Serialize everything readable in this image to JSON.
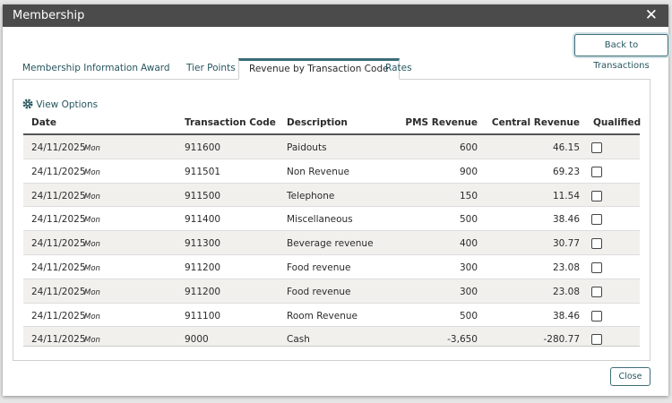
{
  "dialog": {
    "title": "Membership",
    "close_icon": "✕",
    "back_button": "Back to Transactions",
    "tabs": [
      "Membership Information",
      "Award",
      "Tier Points",
      "Revenue by Transaction Code",
      "Rates"
    ],
    "active_tab": 3,
    "view_options": "View Options",
    "table": {
      "columns": [
        "Date",
        "Transaction Code",
        "Description",
        "PMS Revenue",
        "Central Revenue",
        "Qualified"
      ],
      "rows": [
        [
          "24/11/2025",
          "Mon",
          "911600",
          "Paidouts",
          "600",
          "46.15"
        ],
        [
          "24/11/2025",
          "Mon",
          "911501",
          "Non Revenue",
          "900",
          "69.23"
        ],
        [
          "24/11/2025",
          "Mon",
          "911500",
          "Telephone",
          "150",
          "11.54"
        ],
        [
          "24/11/2025",
          "Mon",
          "911400",
          "Miscellaneous",
          "500",
          "38.46"
        ],
        [
          "24/11/2025",
          "Mon",
          "911300",
          "Beverage revenue",
          "400",
          "30.77"
        ],
        [
          "24/11/2025",
          "Mon",
          "911200",
          "Food revenue",
          "300",
          "23.08"
        ],
        [
          "24/11/2025",
          "Mon",
          "911200",
          "Food revenue",
          "300",
          "23.08"
        ],
        [
          "24/11/2025",
          "Mon",
          "911100",
          "Room Revenue",
          "500",
          "38.46"
        ],
        [
          "24/11/2025",
          "Mon",
          "9000",
          "Cash",
          "-3,650",
          "-280.77"
        ]
      ]
    },
    "close_button": "Close"
  }
}
